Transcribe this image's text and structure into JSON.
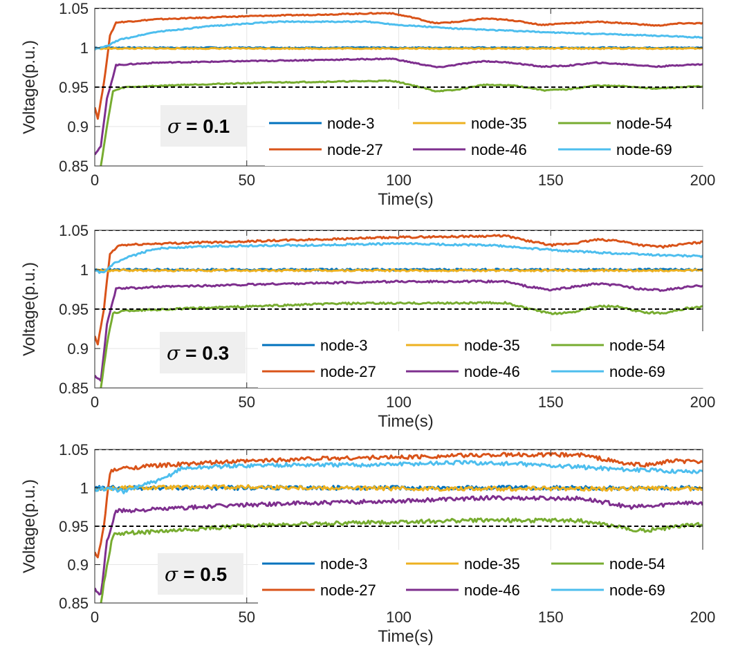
{
  "chart_data": [
    {
      "type": "line",
      "annotation": {
        "symbol": "σ",
        "value": "= 0.1"
      },
      "xlabel": "Time(s)",
      "ylabel": "Voltage(p.u.)",
      "xlim": [
        0,
        200
      ],
      "ylim": [
        0.85,
        1.05
      ],
      "xticks": [
        0,
        50,
        100,
        150,
        200
      ],
      "yticks": [
        0.85,
        0.9,
        0.95,
        1,
        1.05
      ],
      "ytick_labels": [
        "0.85",
        "0.9",
        "0.95",
        "1",
        "1.05"
      ],
      "reference_lines": [
        1.05,
        0.95
      ],
      "series": [
        {
          "name": "node-3",
          "color": "#0072BD",
          "points": [
            [
              0,
              1.0
            ],
            [
              200,
              1.0
            ]
          ]
        },
        {
          "name": "node-27",
          "color": "#D95319",
          "points": [
            [
              0,
              0.925
            ],
            [
              1,
              0.91
            ],
            [
              3,
              0.955
            ],
            [
              5,
              1.015
            ],
            [
              7,
              1.032
            ],
            [
              20,
              1.036
            ],
            [
              50,
              1.04
            ],
            [
              97,
              1.044
            ],
            [
              105,
              1.038
            ],
            [
              112,
              1.031
            ],
            [
              120,
              1.033
            ],
            [
              128,
              1.037
            ],
            [
              137,
              1.035
            ],
            [
              147,
              1.029
            ],
            [
              155,
              1.031
            ],
            [
              165,
              1.033
            ],
            [
              175,
              1.031
            ],
            [
              185,
              1.028
            ],
            [
              193,
              1.031
            ],
            [
              200,
              1.031
            ]
          ]
        },
        {
          "name": "node-35",
          "color": "#EDB120",
          "points": [
            [
              0,
              0.999
            ],
            [
              200,
              0.999
            ]
          ]
        },
        {
          "name": "node-46",
          "color": "#7E2F8E",
          "points": [
            [
              0,
              0.865
            ],
            [
              2,
              0.875
            ],
            [
              4,
              0.935
            ],
            [
              7,
              0.978
            ],
            [
              20,
              0.981
            ],
            [
              50,
              0.983
            ],
            [
              98,
              0.986
            ],
            [
              106,
              0.98
            ],
            [
              113,
              0.975
            ],
            [
              120,
              0.979
            ],
            [
              128,
              0.983
            ],
            [
              137,
              0.981
            ],
            [
              147,
              0.976
            ],
            [
              155,
              0.977
            ],
            [
              165,
              0.981
            ],
            [
              175,
              0.979
            ],
            [
              185,
              0.976
            ],
            [
              193,
              0.978
            ],
            [
              200,
              0.979
            ]
          ]
        },
        {
          "name": "node-54",
          "color": "#77AC30",
          "points": [
            [
              2,
              0.85
            ],
            [
              4,
              0.9
            ],
            [
              6,
              0.945
            ],
            [
              10,
              0.95
            ],
            [
              30,
              0.953
            ],
            [
              60,
              0.956
            ],
            [
              98,
              0.958
            ],
            [
              105,
              0.952
            ],
            [
              112,
              0.945
            ],
            [
              118,
              0.946
            ],
            [
              128,
              0.953
            ],
            [
              138,
              0.952
            ],
            [
              148,
              0.946
            ],
            [
              155,
              0.947
            ],
            [
              165,
              0.952
            ],
            [
              175,
              0.951
            ],
            [
              185,
              0.948
            ],
            [
              193,
              0.95
            ],
            [
              200,
              0.951
            ]
          ]
        },
        {
          "name": "node-69",
          "color": "#4DBEEE",
          "points": [
            [
              0,
              0.998
            ],
            [
              4,
              1.002
            ],
            [
              8,
              1.01
            ],
            [
              20,
              1.02
            ],
            [
              40,
              1.028
            ],
            [
              60,
              1.033
            ],
            [
              90,
              1.033
            ],
            [
              100,
              1.029
            ],
            [
              120,
              1.024
            ],
            [
              140,
              1.021
            ],
            [
              160,
              1.018
            ],
            [
              180,
              1.016
            ],
            [
              200,
              1.013
            ]
          ]
        }
      ]
    },
    {
      "type": "line",
      "annotation": {
        "symbol": "σ",
        "value": "= 0.3"
      },
      "xlabel": "Time(s)",
      "ylabel": "Voltage(p.u.)",
      "xlim": [
        0,
        200
      ],
      "ylim": [
        0.85,
        1.05
      ],
      "xticks": [
        0,
        50,
        100,
        150,
        200
      ],
      "yticks": [
        0.85,
        0.9,
        0.95,
        1,
        1.05
      ],
      "ytick_labels": [
        "0.85",
        "0.9",
        "0.95",
        "1",
        "1.05"
      ],
      "reference_lines": [
        1.05,
        0.95
      ],
      "series": [
        {
          "name": "node-3",
          "color": "#0072BD",
          "points": [
            [
              0,
              1.0
            ],
            [
              200,
              1.0
            ]
          ]
        },
        {
          "name": "node-27",
          "color": "#D95319",
          "points": [
            [
              0,
              0.915
            ],
            [
              1,
              0.905
            ],
            [
              3,
              0.95
            ],
            [
              5,
              1.02
            ],
            [
              8,
              1.031
            ],
            [
              20,
              1.033
            ],
            [
              50,
              1.036
            ],
            [
              100,
              1.041
            ],
            [
              135,
              1.043
            ],
            [
              142,
              1.037
            ],
            [
              150,
              1.031
            ],
            [
              157,
              1.033
            ],
            [
              165,
              1.038
            ],
            [
              172,
              1.037
            ],
            [
              180,
              1.031
            ],
            [
              187,
              1.029
            ],
            [
              195,
              1.033
            ],
            [
              200,
              1.035
            ]
          ]
        },
        {
          "name": "node-35",
          "color": "#EDB120",
          "points": [
            [
              0,
              0.999
            ],
            [
              200,
              0.999
            ]
          ]
        },
        {
          "name": "node-46",
          "color": "#7E2F8E",
          "points": [
            [
              0,
              0.865
            ],
            [
              2,
              0.86
            ],
            [
              4,
              0.93
            ],
            [
              7,
              0.976
            ],
            [
              20,
              0.978
            ],
            [
              60,
              0.982
            ],
            [
              100,
              0.985
            ],
            [
              135,
              0.985
            ],
            [
              142,
              0.979
            ],
            [
              150,
              0.974
            ],
            [
              157,
              0.978
            ],
            [
              165,
              0.982
            ],
            [
              173,
              0.98
            ],
            [
              180,
              0.975
            ],
            [
              187,
              0.974
            ],
            [
              195,
              0.978
            ],
            [
              200,
              0.98
            ]
          ]
        },
        {
          "name": "node-54",
          "color": "#77AC30",
          "points": [
            [
              2,
              0.85
            ],
            [
              4,
              0.905
            ],
            [
              6,
              0.945
            ],
            [
              10,
              0.948
            ],
            [
              40,
              0.952
            ],
            [
              80,
              0.957
            ],
            [
              135,
              0.958
            ],
            [
              142,
              0.951
            ],
            [
              150,
              0.944
            ],
            [
              157,
              0.946
            ],
            [
              165,
              0.954
            ],
            [
              172,
              0.953
            ],
            [
              180,
              0.946
            ],
            [
              187,
              0.945
            ],
            [
              195,
              0.951
            ],
            [
              200,
              0.953
            ]
          ]
        },
        {
          "name": "node-69",
          "color": "#4DBEEE",
          "points": [
            [
              0,
              0.998
            ],
            [
              3,
              0.996
            ],
            [
              6,
              1.007
            ],
            [
              12,
              1.017
            ],
            [
              20,
              1.027
            ],
            [
              40,
              1.03
            ],
            [
              70,
              1.031
            ],
            [
              100,
              1.033
            ],
            [
              130,
              1.031
            ],
            [
              150,
              1.025
            ],
            [
              170,
              1.021
            ],
            [
              190,
              1.018
            ],
            [
              200,
              1.017
            ]
          ]
        }
      ]
    },
    {
      "type": "line",
      "annotation": {
        "symbol": "σ",
        "value": "= 0.5"
      },
      "xlabel": "Time(s)",
      "ylabel": "Voltage(p.u.)",
      "xlim": [
        0,
        200
      ],
      "ylim": [
        0.85,
        1.05
      ],
      "xticks": [
        0,
        50,
        100,
        150,
        200
      ],
      "yticks": [
        0.85,
        0.9,
        0.95,
        1,
        1.05
      ],
      "ytick_labels": [
        "0.85",
        "0.9",
        "0.95",
        "1",
        "1.05"
      ],
      "reference_lines": [
        1.05,
        0.95
      ],
      "series": [
        {
          "name": "node-3",
          "color": "#0072BD",
          "points": [
            [
              0,
              1.0
            ],
            [
              200,
              1.0
            ]
          ]
        },
        {
          "name": "node-27",
          "color": "#D95319",
          "points": [
            [
              0,
              0.915
            ],
            [
              1,
              0.908
            ],
            [
              3,
              0.95
            ],
            [
              5,
              1.02
            ],
            [
              8,
              1.025
            ],
            [
              20,
              1.029
            ],
            [
              40,
              1.033
            ],
            [
              70,
              1.038
            ],
            [
              100,
              1.04
            ],
            [
              130,
              1.043
            ],
            [
              160,
              1.043
            ],
            [
              168,
              1.037
            ],
            [
              175,
              1.031
            ],
            [
              182,
              1.03
            ],
            [
              190,
              1.035
            ],
            [
              200,
              1.034
            ]
          ]
        },
        {
          "name": "node-35",
          "color": "#EDB120",
          "points": [
            [
              0,
              0.998
            ],
            [
              10,
              1.0
            ],
            [
              50,
              1.001
            ],
            [
              100,
              0.999
            ],
            [
              200,
              0.999
            ]
          ]
        },
        {
          "name": "node-46",
          "color": "#7E2F8E",
          "points": [
            [
              0,
              0.868
            ],
            [
              2,
              0.86
            ],
            [
              4,
              0.93
            ],
            [
              7,
              0.97
            ],
            [
              20,
              0.972
            ],
            [
              50,
              0.978
            ],
            [
              90,
              0.982
            ],
            [
              130,
              0.987
            ],
            [
              160,
              0.986
            ],
            [
              168,
              0.981
            ],
            [
              176,
              0.975
            ],
            [
              184,
              0.976
            ],
            [
              192,
              0.981
            ],
            [
              200,
              0.98
            ]
          ]
        },
        {
          "name": "node-54",
          "color": "#77AC30",
          "points": [
            [
              2,
              0.85
            ],
            [
              4,
              0.9
            ],
            [
              6,
              0.938
            ],
            [
              10,
              0.941
            ],
            [
              25,
              0.944
            ],
            [
              50,
              0.951
            ],
            [
              80,
              0.954
            ],
            [
              130,
              0.958
            ],
            [
              160,
              0.957
            ],
            [
              168,
              0.952
            ],
            [
              176,
              0.946
            ],
            [
              183,
              0.945
            ],
            [
              192,
              0.95
            ],
            [
              200,
              0.952
            ]
          ]
        },
        {
          "name": "node-69",
          "color": "#4DBEEE",
          "points": [
            [
              0,
              0.998
            ],
            [
              5,
              0.999
            ],
            [
              10,
              0.995
            ],
            [
              15,
              1.003
            ],
            [
              22,
              1.01
            ],
            [
              28,
              1.025
            ],
            [
              40,
              1.028
            ],
            [
              60,
              1.03
            ],
            [
              90,
              1.03
            ],
            [
              120,
              1.033
            ],
            [
              140,
              1.031
            ],
            [
              160,
              1.027
            ],
            [
              180,
              1.023
            ],
            [
              200,
              1.021
            ]
          ]
        }
      ]
    }
  ]
}
